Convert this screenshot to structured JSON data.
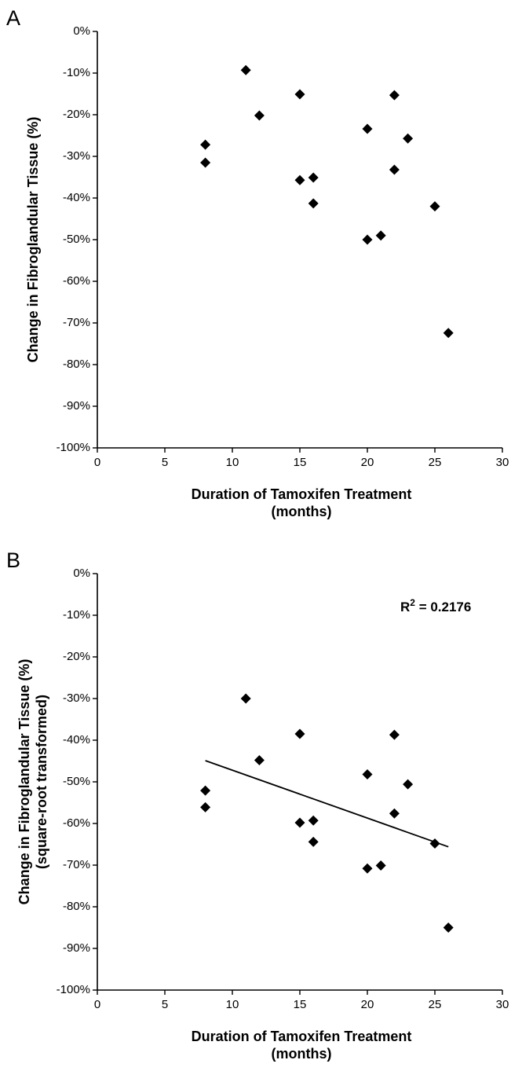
{
  "chart_data": [
    {
      "type": "scatter",
      "panel_label": "A",
      "xlabel": "Duration of Tamoxifen Treatment",
      "xlabel_unit": "(months)",
      "ylabel": "Change in Fibroglandular Tissue (%)",
      "ylabel_sub": "",
      "xlim": [
        0,
        30
      ],
      "ylim": [
        -100,
        0
      ],
      "xticks": [
        "0",
        "5",
        "10",
        "15",
        "20",
        "25",
        "30"
      ],
      "yticks": [
        "0%",
        "-10%",
        "-20%",
        "-30%",
        "-40%",
        "-50%",
        "-60%",
        "-70%",
        "-80%",
        "-90%",
        "-100%"
      ],
      "grid": false,
      "points": [
        {
          "x": 8,
          "y": -27.2
        },
        {
          "x": 8,
          "y": -31.5
        },
        {
          "x": 11,
          "y": -9.3
        },
        {
          "x": 12,
          "y": -20.2
        },
        {
          "x": 15,
          "y": -15.1
        },
        {
          "x": 15,
          "y": -35.7
        },
        {
          "x": 16,
          "y": -35.1
        },
        {
          "x": 16,
          "y": -41.3
        },
        {
          "x": 20,
          "y": -23.4
        },
        {
          "x": 20,
          "y": -50.0
        },
        {
          "x": 21,
          "y": -49.0
        },
        {
          "x": 22,
          "y": -15.3
        },
        {
          "x": 22,
          "y": -33.2
        },
        {
          "x": 23,
          "y": -25.7
        },
        {
          "x": 25,
          "y": -42.0
        },
        {
          "x": 26,
          "y": -72.4
        }
      ]
    },
    {
      "type": "scatter",
      "panel_label": "B",
      "xlabel": "Duration of Tamoxifen Treatment",
      "xlabel_unit": "(months)",
      "ylabel": "Change in Fibroglandular Tissue (%)",
      "ylabel_sub": "(square-root transformed)",
      "xlim": [
        0,
        30
      ],
      "ylim": [
        -100,
        0
      ],
      "xticks": [
        "0",
        "5",
        "10",
        "15",
        "20",
        "25",
        "30"
      ],
      "yticks": [
        "0%",
        "-10%",
        "-20%",
        "-30%",
        "-40%",
        "-50%",
        "-60%",
        "-70%",
        "-80%",
        "-90%",
        "-100%"
      ],
      "grid": false,
      "annotation": {
        "r_label": "R",
        "r_sup": "2",
        "value_text": " = 0.2176"
      },
      "trendline": {
        "x1": 8,
        "y1": -44.9,
        "x2": 26,
        "y2": -65.6
      },
      "points": [
        {
          "x": 8,
          "y": -52.1
        },
        {
          "x": 8,
          "y": -56.1
        },
        {
          "x": 11,
          "y": -30.0
        },
        {
          "x": 12,
          "y": -44.8
        },
        {
          "x": 15,
          "y": -38.5
        },
        {
          "x": 15,
          "y": -59.8
        },
        {
          "x": 16,
          "y": -59.3
        },
        {
          "x": 16,
          "y": -64.4
        },
        {
          "x": 20,
          "y": -48.2
        },
        {
          "x": 20,
          "y": -70.8
        },
        {
          "x": 21,
          "y": -70.1
        },
        {
          "x": 22,
          "y": -38.7
        },
        {
          "x": 22,
          "y": -57.6
        },
        {
          "x": 23,
          "y": -50.6
        },
        {
          "x": 25,
          "y": -64.8
        },
        {
          "x": 26,
          "y": -85.0
        }
      ]
    }
  ]
}
